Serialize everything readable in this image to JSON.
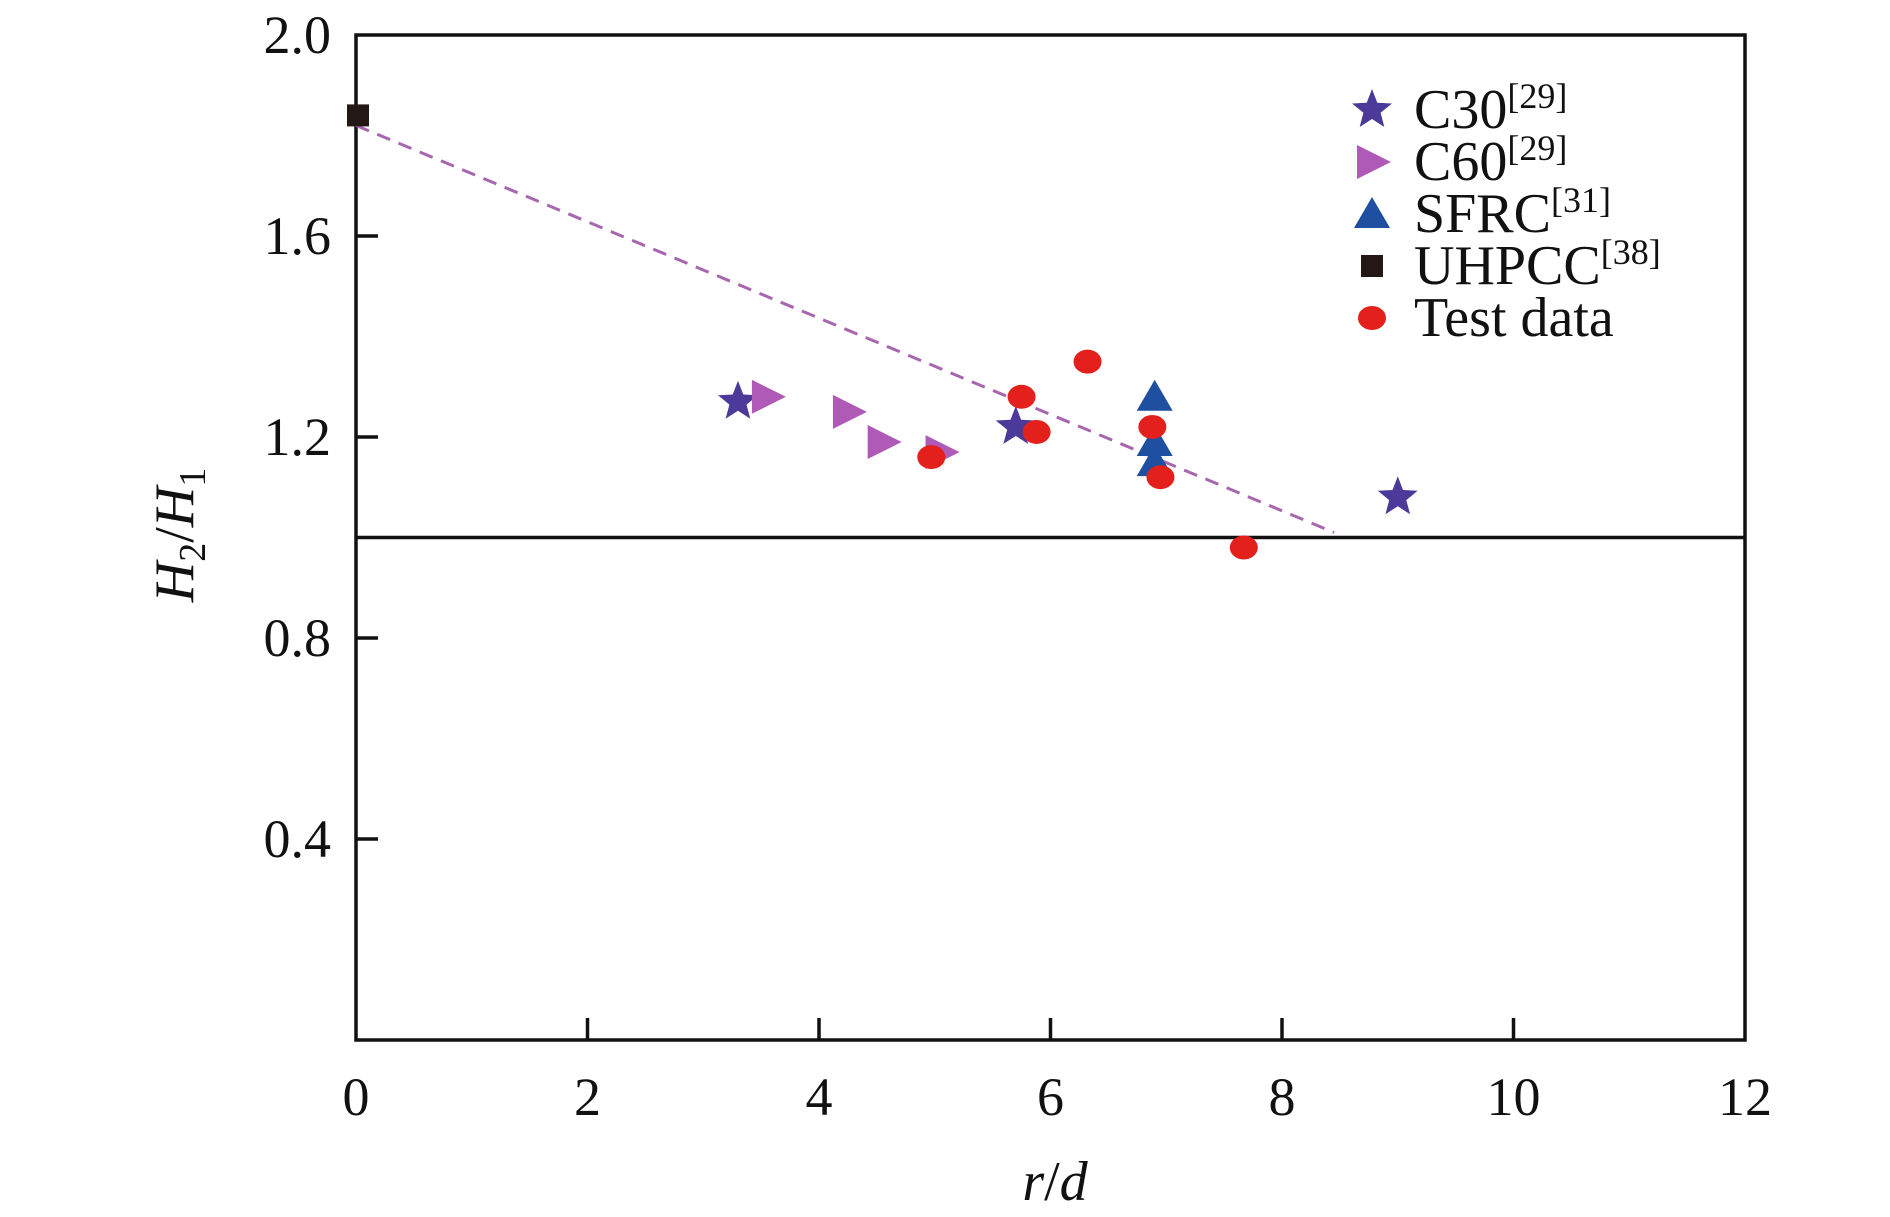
{
  "chart_data": {
    "type": "scatter",
    "title": "",
    "xlabel": {
      "main": "r",
      "sep": "/",
      "den": "d"
    },
    "ylabel": {
      "num": "H",
      "num_sub": "2",
      "sep": "/",
      "den": "H",
      "den_sub": "1"
    },
    "xlim": [
      0,
      12
    ],
    "ylim": [
      0,
      2.0
    ],
    "x_ticks": [
      0,
      2,
      4,
      6,
      8,
      10,
      12
    ],
    "x_tick_labels": [
      "0",
      "2",
      "4",
      "6",
      "8",
      "10",
      "12"
    ],
    "y_ticks": [
      0.4,
      0.8,
      1.2,
      1.6,
      2.0
    ],
    "y_tick_labels": [
      "0.4",
      "0.8",
      "1.2",
      "1.6",
      "2.0"
    ],
    "grid": false,
    "legend_position": "top-right",
    "series": [
      {
        "name": "C30",
        "ref": "[29]",
        "marker": "star",
        "color": "#4b3a9a",
        "points": [
          [
            3.3,
            1.27
          ],
          [
            5.7,
            1.22
          ],
          [
            9.0,
            1.08
          ]
        ]
      },
      {
        "name": "C60",
        "ref": "[29]",
        "marker": "triangle-right",
        "color": "#b05ab8",
        "points": [
          [
            3.55,
            1.28
          ],
          [
            4.25,
            1.25
          ],
          [
            4.55,
            1.19
          ],
          [
            5.05,
            1.17
          ]
        ]
      },
      {
        "name": "SFRC",
        "ref": "[31]",
        "marker": "triangle-up",
        "color": "#1f4fa0",
        "points": [
          [
            6.9,
            1.28
          ],
          [
            6.9,
            1.19
          ],
          [
            6.9,
            1.15
          ]
        ]
      },
      {
        "name": "UHPCC",
        "ref": "[38]",
        "marker": "square",
        "color": "#231815",
        "points": [
          [
            0.0,
            1.84
          ]
        ]
      },
      {
        "name": "Test data",
        "ref": "",
        "marker": "circle",
        "color": "#e3201b",
        "points": [
          [
            4.97,
            1.16
          ],
          [
            5.75,
            1.28
          ],
          [
            5.88,
            1.21
          ],
          [
            6.32,
            1.35
          ],
          [
            6.88,
            1.22
          ],
          [
            6.95,
            1.12
          ],
          [
            7.67,
            0.98
          ]
        ]
      }
    ],
    "reference_lines": [
      {
        "style": "solid",
        "color": "#111111",
        "from": [
          0,
          1.0
        ],
        "to": [
          12,
          1.0
        ]
      },
      {
        "style": "dashed",
        "color": "#a766ae",
        "from": [
          0,
          1.82
        ],
        "to": [
          8.45,
          1.01
        ]
      }
    ]
  }
}
